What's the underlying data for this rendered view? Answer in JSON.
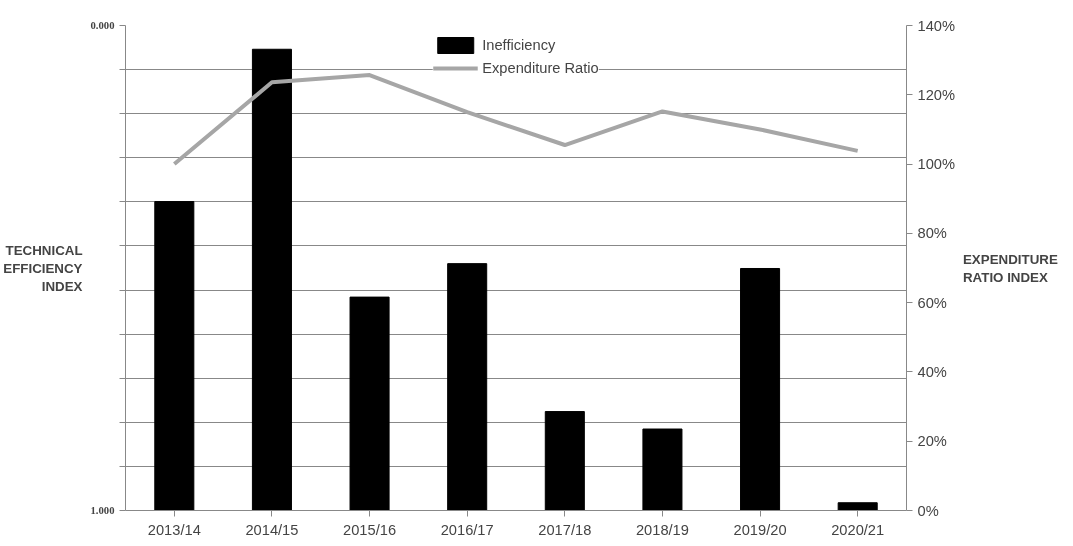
{
  "chart_data": {
    "type": "bar",
    "categories": [
      "2013/14",
      "2014/15",
      "2015/16",
      "2016/17",
      "2017/18",
      "2018/19",
      "2019/20",
      "2020/21"
    ],
    "ylabel": "TECHNICAL EFFICIENCY INDEX",
    "y2label": "EXPENDITURE RATIO INDEX",
    "series": [
      {
        "name": "Inefficiency",
        "color": "#000000",
        "values": [
          -0.637,
          -0.951,
          -0.44,
          -0.509,
          -0.204,
          -0.168,
          -0.499,
          -0.016
        ],
        "base": [
          1,
          1,
          1,
          1,
          1,
          1,
          1,
          1
        ]
      },
      {
        "name": "Expenditure Ratio",
        "type": "line",
        "axis": "y2",
        "color": "#a6a6a6",
        "values": [
          100,
          123.6,
          125.7,
          115,
          105.5,
          115.2,
          110,
          103.8
        ]
      }
    ],
    "ylim": [
      1,
      0
    ],
    "yticks": [
      {
        "value": 0,
        "label": "0.000"
      },
      {
        "value": 0.0909,
        "label": null
      },
      {
        "value": 0.1818,
        "label": null
      },
      {
        "value": 0.2727,
        "label": null
      },
      {
        "value": 0.3636,
        "label": null
      },
      {
        "value": 0.4545,
        "label": null
      },
      {
        "value": 0.5455,
        "label": null
      },
      {
        "value": 0.6364,
        "label": null
      },
      {
        "value": 0.7273,
        "label": null
      },
      {
        "value": 0.8182,
        "label": null
      },
      {
        "value": 0.9091,
        "label": null
      },
      {
        "value": 1,
        "label": "1.000"
      }
    ],
    "y2lim": [
      0,
      140
    ],
    "y2ticks": [
      {
        "value": 0,
        "label": "0%"
      },
      {
        "value": 20,
        "label": "20%"
      },
      {
        "value": 40,
        "label": "40%"
      },
      {
        "value": 60,
        "label": "60%"
      },
      {
        "value": 80,
        "label": "80%"
      },
      {
        "value": 100,
        "label": "100%"
      },
      {
        "value": 120,
        "label": "120%"
      },
      {
        "value": 140,
        "label": "140%"
      }
    ],
    "grid": "y",
    "legend": "top",
    "marker": "none",
    "line_style": "solid"
  }
}
